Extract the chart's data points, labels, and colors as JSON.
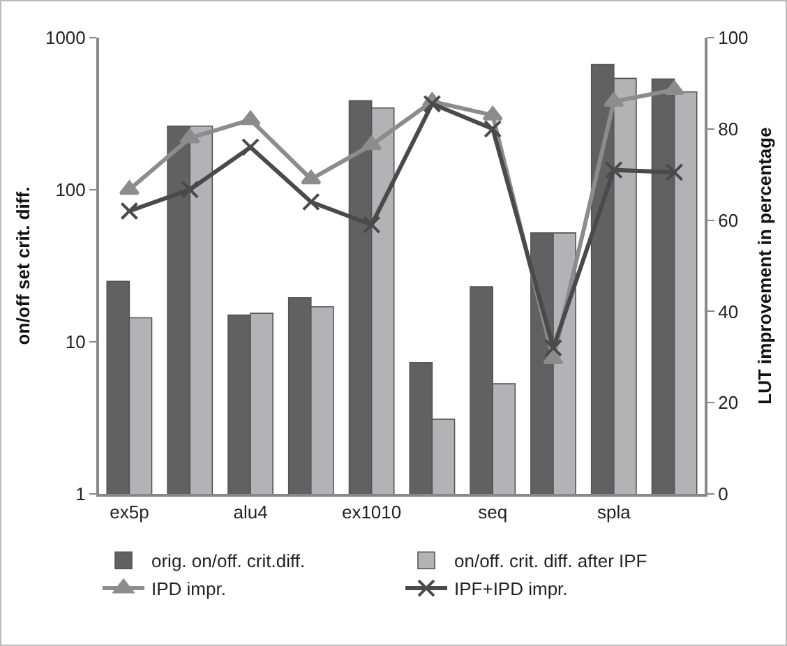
{
  "chart_data": {
    "type": "bar",
    "ylabel": "on/off set crit. diff.",
    "y2label": "LUT improvement in percentage",
    "categories": [
      "ex5p",
      null,
      "alu4",
      null,
      "ex1010",
      null,
      "seq",
      null,
      "spla",
      null
    ],
    "series": [
      {
        "name": "orig. on/off. crit.diff.",
        "color": "#616161",
        "values": [
          25,
          262,
          15,
          19.5,
          385,
          7.3,
          23,
          52,
          665,
          535
        ]
      },
      {
        "name": "on/off. crit. diff. after IPF",
        "color": "#b3b3b5",
        "values": [
          14.4,
          262,
          15.4,
          17,
          345,
          3.1,
          5.3,
          52,
          540,
          440
        ]
      },
      {
        "name": "IPD impr.",
        "type": "line",
        "axis": "y2",
        "marker": "triangle",
        "color": "#8c8c8c",
        "values": [
          66.7,
          78,
          82,
          69,
          76.5,
          86,
          83,
          29.6,
          86,
          88.6
        ]
      },
      {
        "name": "IPF+IPD impr.",
        "type": "line",
        "axis": "y2",
        "marker": "cross",
        "color": "#4a4a4a",
        "values": [
          62,
          66.7,
          76,
          64,
          59,
          85.5,
          80,
          32,
          71,
          70.5
        ]
      }
    ],
    "log": "y",
    "ylim": [
      1,
      1000
    ],
    "yticks": [
      1,
      10,
      100,
      1000
    ],
    "y2lim": [
      0,
      100
    ],
    "y2ticks": [
      0,
      20,
      40,
      60,
      80,
      100
    ],
    "grid": false,
    "legend": "bottom"
  }
}
